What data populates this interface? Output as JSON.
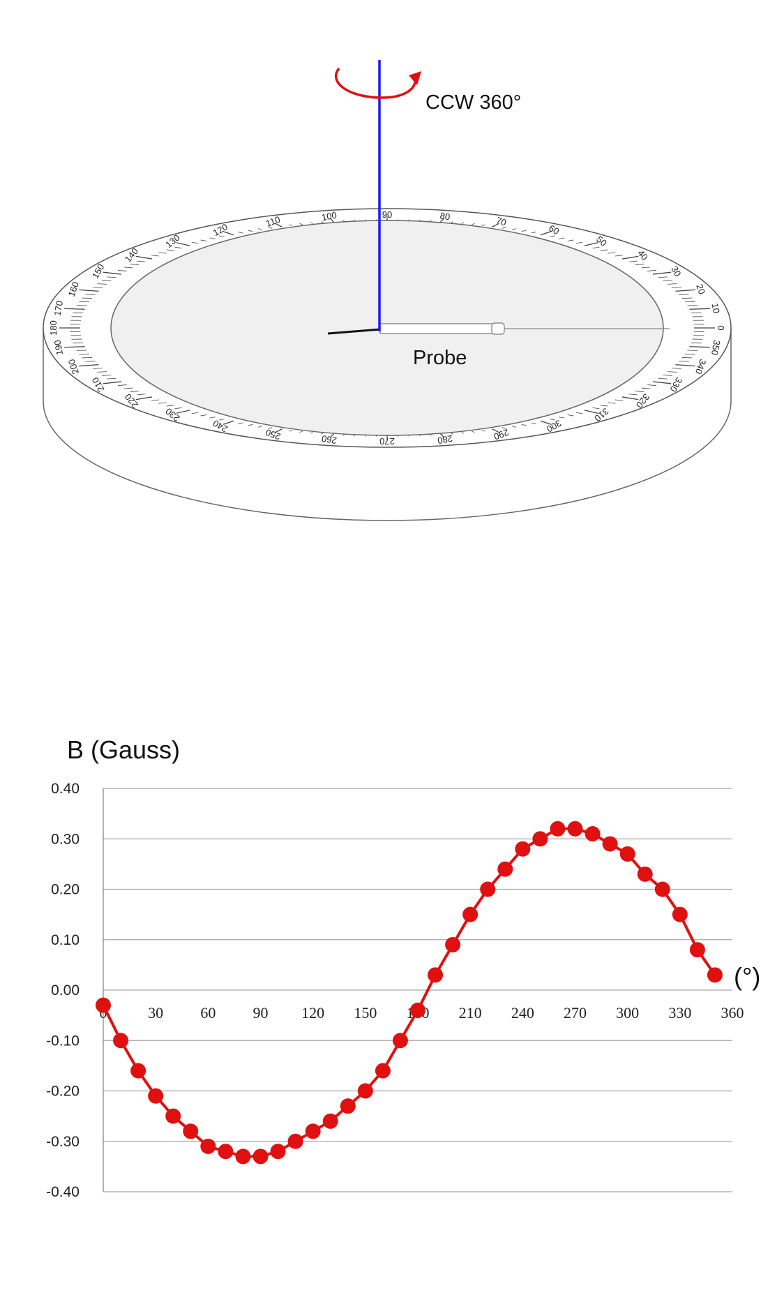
{
  "diagram": {
    "rotation_label": "CCW 360°",
    "probe_label": "Probe",
    "dial_labels": [
      "0",
      "10",
      "20",
      "30",
      "40",
      "50",
      "60",
      "70",
      "80",
      "90",
      "100",
      "110",
      "120",
      "130",
      "140",
      "150",
      "160",
      "170",
      "180",
      "190",
      "200",
      "210",
      "220",
      "230",
      "240",
      "250",
      "260",
      "270",
      "280",
      "290",
      "300",
      "310",
      "320",
      "330",
      "340",
      "350"
    ],
    "colors": {
      "axis": "#1a1aff",
      "rotation_arrow": "#e01010",
      "outline": "#555555",
      "inner_fill": "#f0f0f0"
    }
  },
  "chart_data": {
    "type": "line",
    "title": "",
    "ylabel": "B (Gauss)",
    "xlabel": "(°)",
    "xlim": [
      0,
      360
    ],
    "ylim": [
      -0.4,
      0.4
    ],
    "x_ticks": [
      0,
      30,
      60,
      90,
      120,
      150,
      180,
      210,
      240,
      270,
      300,
      330,
      360
    ],
    "y_ticks": [
      0.4,
      0.3,
      0.2,
      0.1,
      0.0,
      -0.1,
      -0.2,
      -0.3,
      -0.4
    ],
    "y_tick_labels": [
      "0.40",
      "0.30",
      "0.20",
      "0.10",
      "0.00",
      "-0.10",
      "-0.20",
      "-0.30",
      "-0.40"
    ],
    "grid": true,
    "series": [
      {
        "color": "#e01010",
        "x": [
          0,
          10,
          20,
          30,
          40,
          50,
          60,
          70,
          80,
          90,
          100,
          110,
          120,
          130,
          140,
          150,
          160,
          170,
          180,
          190,
          200,
          210,
          220,
          230,
          240,
          250,
          260,
          270,
          280,
          290,
          300,
          310,
          320,
          330,
          340,
          350
        ],
        "y": [
          -0.03,
          -0.1,
          -0.16,
          -0.21,
          -0.25,
          -0.28,
          -0.31,
          -0.32,
          -0.33,
          -0.33,
          -0.32,
          -0.3,
          -0.28,
          -0.26,
          -0.23,
          -0.2,
          -0.16,
          -0.1,
          -0.04,
          0.03,
          0.09,
          0.15,
          0.2,
          0.24,
          0.28,
          0.3,
          0.32,
          0.32,
          0.31,
          0.29,
          0.27,
          0.23,
          0.2,
          0.15,
          0.08,
          0.03
        ]
      }
    ]
  }
}
